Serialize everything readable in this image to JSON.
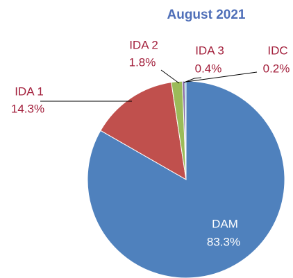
{
  "chart_data": {
    "type": "pie",
    "title": "August 2021",
    "categories": [
      "DAM",
      "IDA 1",
      "IDA 2",
      "IDA 3",
      "IDC"
    ],
    "values": [
      83.3,
      14.3,
      1.8,
      0.4,
      0.2
    ],
    "value_labels": [
      "83.3%",
      "14.3%",
      "1.8%",
      "0.4%",
      "0.2%"
    ],
    "colors": [
      "#4f81bd",
      "#c0504d",
      "#9bbb59",
      "#8064a2",
      "#4bacc6"
    ]
  }
}
